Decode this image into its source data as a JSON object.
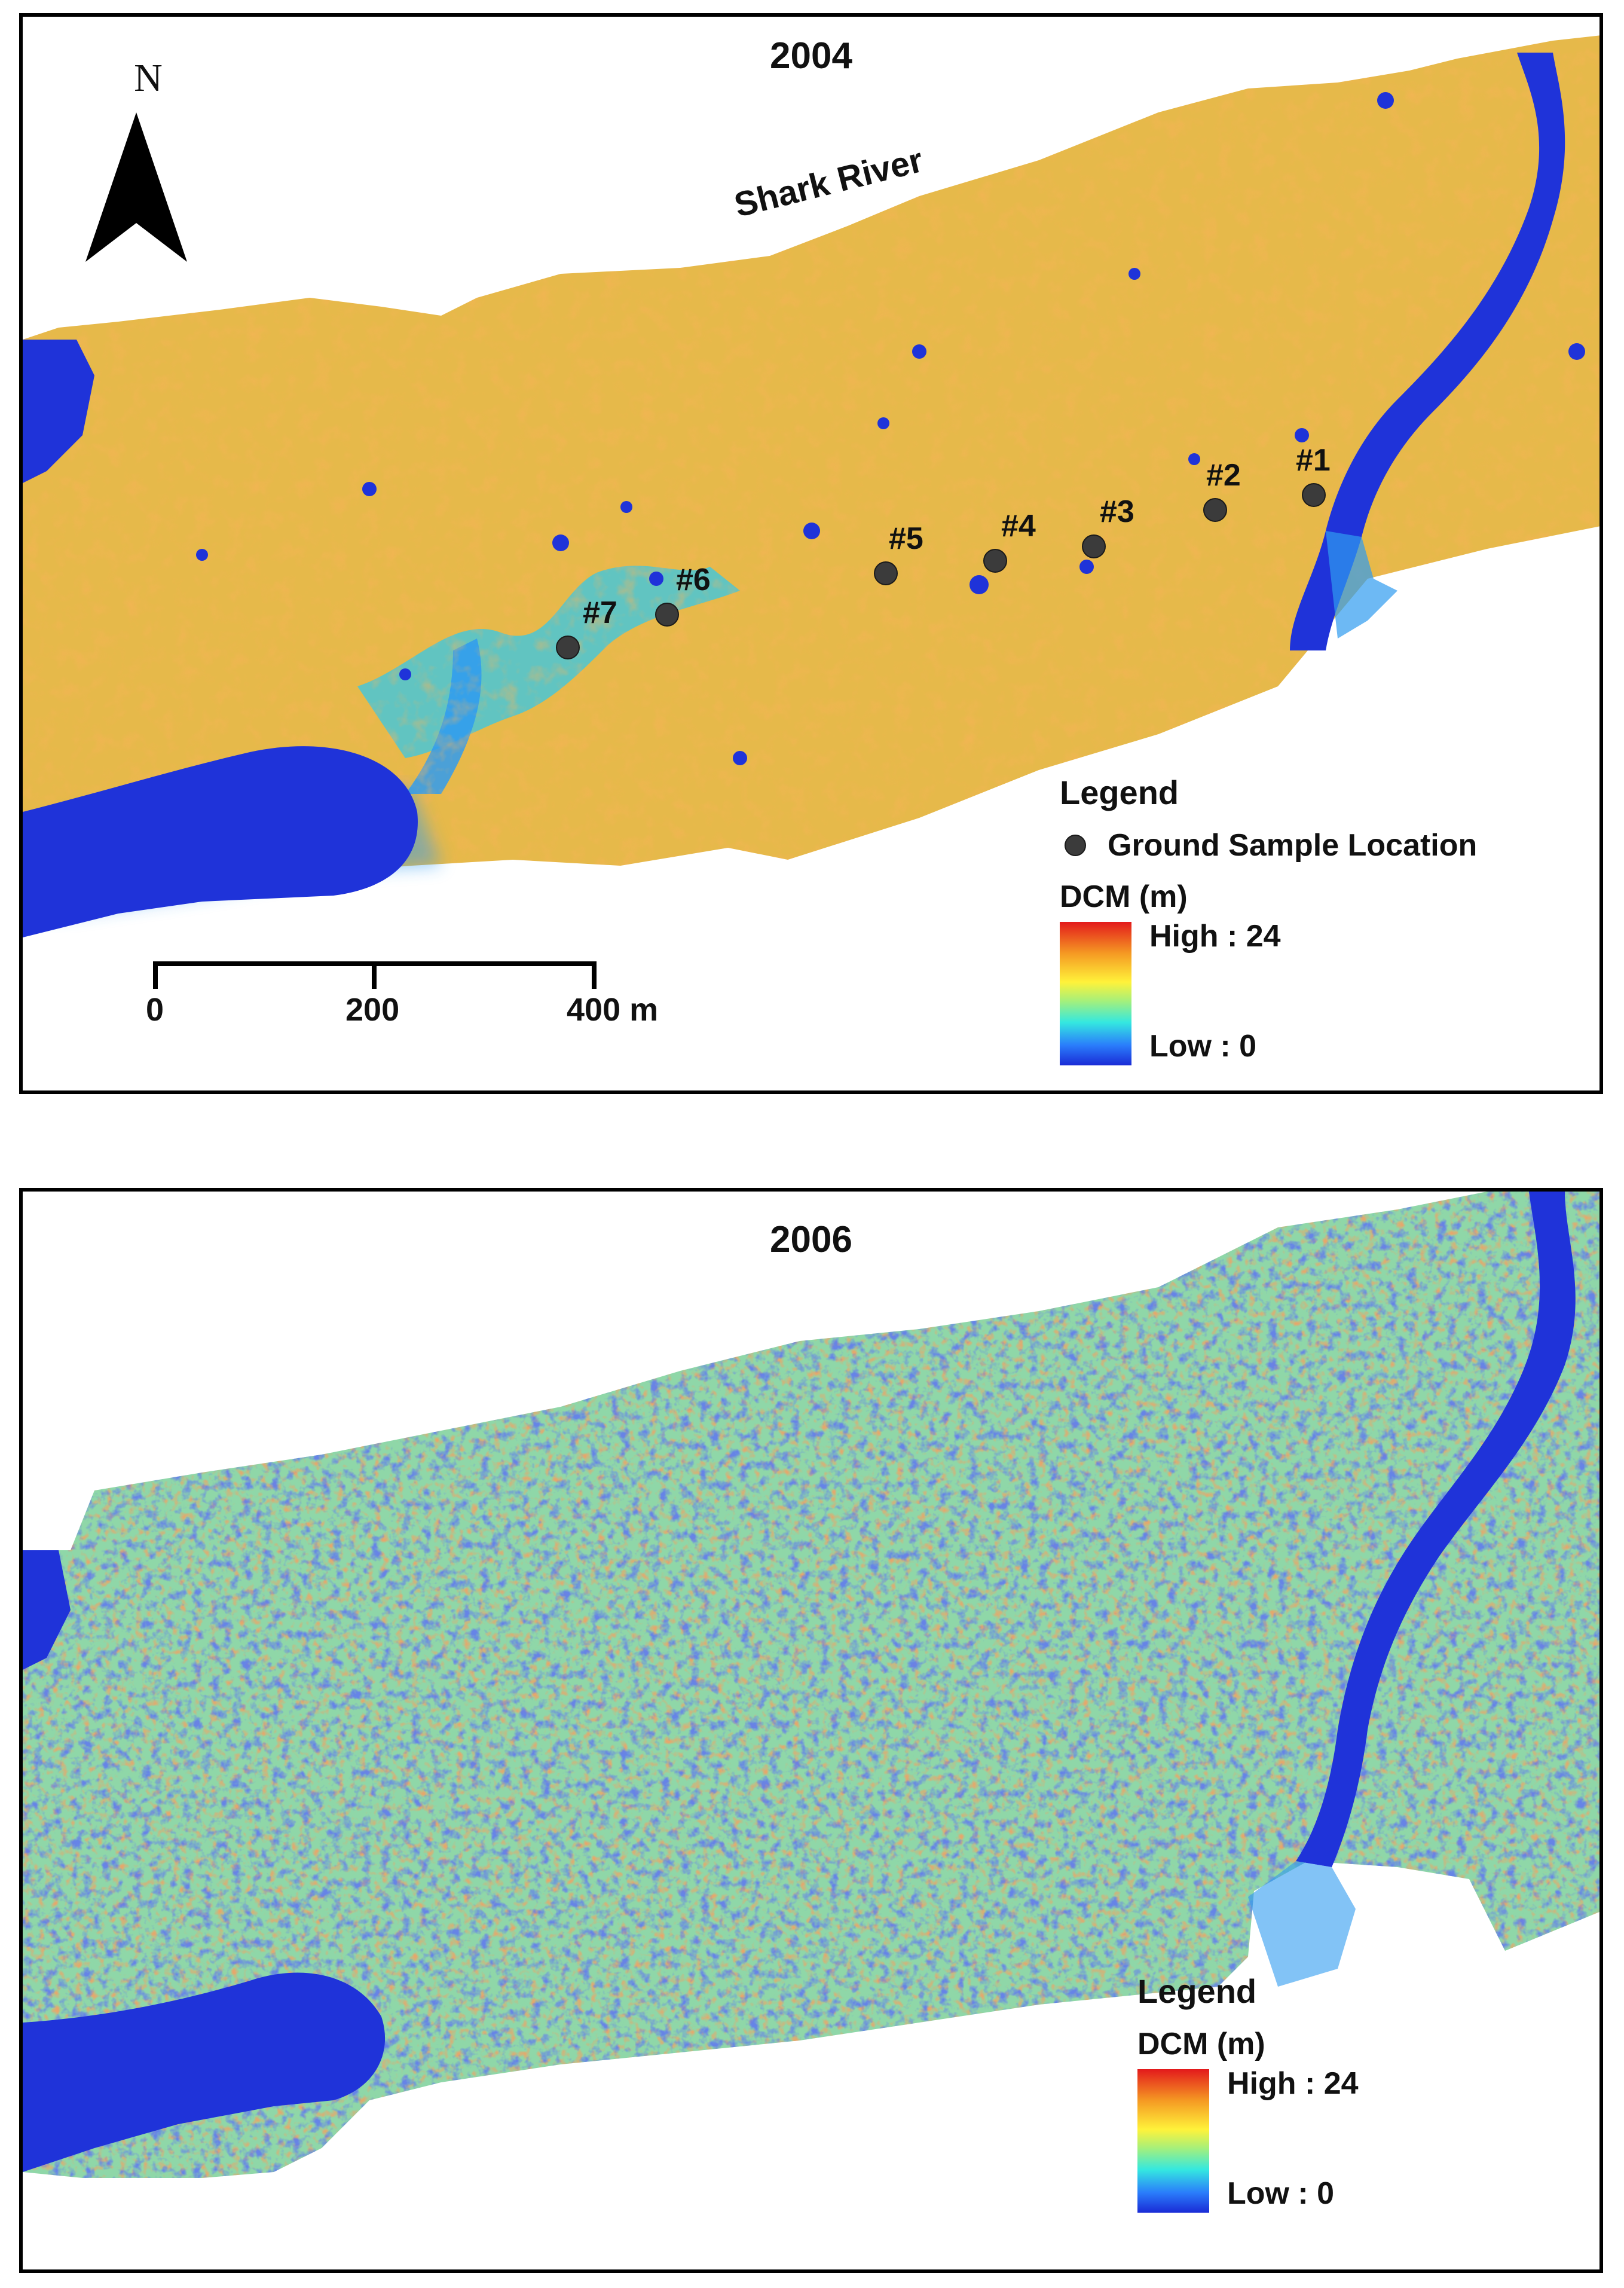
{
  "colors": {
    "water": "#1f33d9",
    "low_canopy": "#2f9bf0",
    "mid_canopy": "#7fe0b8",
    "high_canopy": "#e9b23a",
    "peak_canopy": "#e85a1c",
    "sample_point": "#3b3b3b"
  },
  "panels": [
    {
      "year": "2004",
      "north_label": "N",
      "river_label": "Shark River",
      "sites": [
        {
          "label": "#1"
        },
        {
          "label": "#2"
        },
        {
          "label": "#3"
        },
        {
          "label": "#4"
        },
        {
          "label": "#5"
        },
        {
          "label": "#6"
        },
        {
          "label": "#7"
        }
      ],
      "scale": {
        "ticks": [
          "0",
          "200",
          "400 m"
        ]
      },
      "legend": {
        "title": "Legend",
        "point_label": "Ground Sample Location",
        "ramp_title": "DCM (m)",
        "high": "High : 24",
        "low": "Low : 0"
      }
    },
    {
      "year": "2006",
      "legend": {
        "title": "Legend",
        "ramp_title": "DCM (m)",
        "high": "High : 24",
        "low": "Low : 0"
      }
    }
  ]
}
